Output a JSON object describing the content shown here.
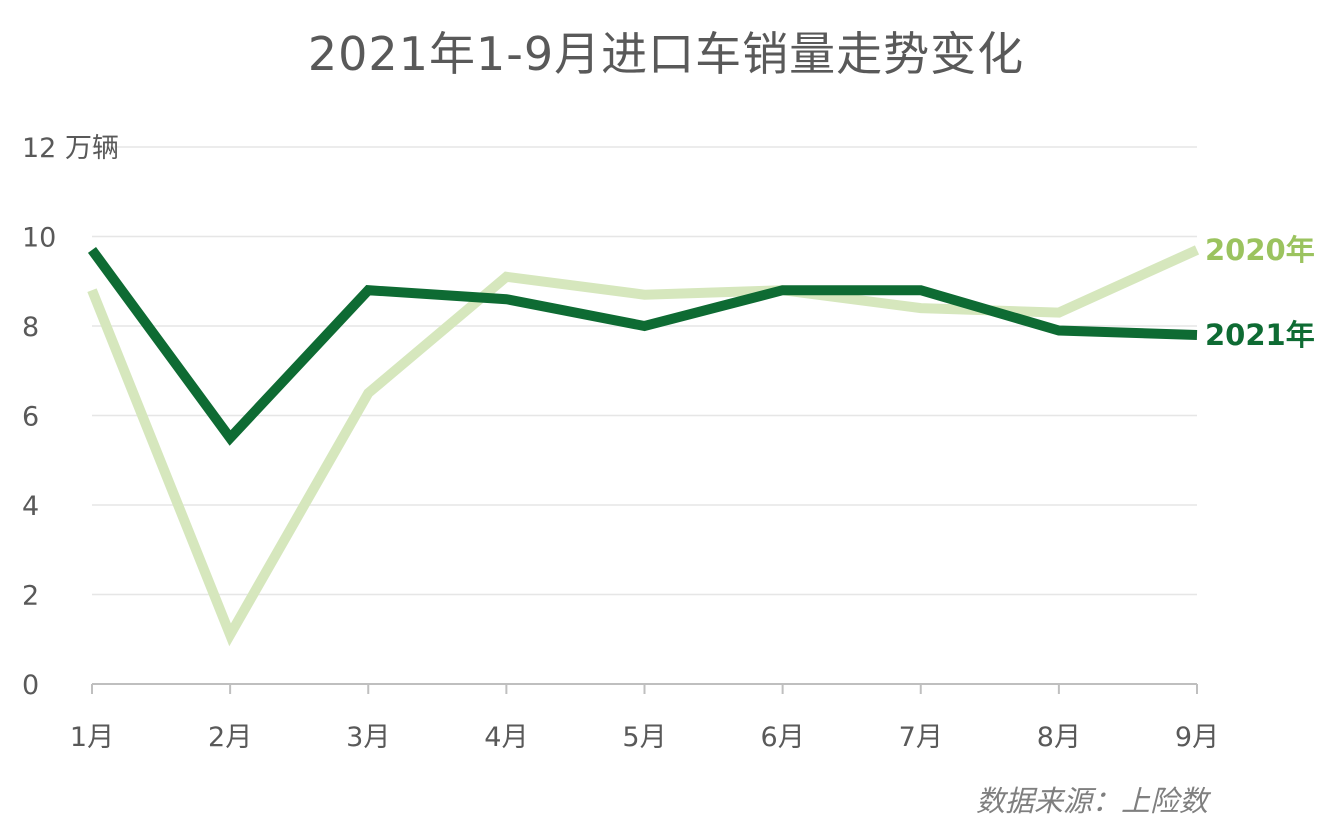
{
  "title": "2021年1-9月进口车销量走势变化",
  "source": "数据来源：上险数",
  "chart_data": {
    "type": "line",
    "title": "2021年1-9月进口车销量走势变化",
    "ylabel": "12 万辆",
    "ylim": [
      0,
      12
    ],
    "yticks": [
      0,
      2,
      4,
      6,
      8,
      10,
      12
    ],
    "ytick_labels": [
      "0",
      "2",
      "4",
      "6",
      "8",
      "10",
      "12 万辆"
    ],
    "categories": [
      "1月",
      "2月",
      "3月",
      "4月",
      "5月",
      "6月",
      "7月",
      "8月",
      "9月"
    ],
    "grid": true,
    "legend": "end-of-line labels",
    "series": [
      {
        "name": "2020年",
        "values": [
          8.8,
          1.1,
          6.5,
          9.1,
          8.7,
          8.8,
          8.4,
          8.3,
          9.7
        ],
        "color": "#d6e7bd"
      },
      {
        "name": "2021年",
        "values": [
          9.7,
          5.5,
          8.8,
          8.6,
          8.0,
          8.8,
          8.8,
          7.9,
          7.8
        ],
        "color": "#0e6b33"
      }
    ],
    "label_colors": {
      "2020年": "#9bc35f",
      "2021年": "#0e6b33"
    },
    "axis_color": "#bfbfbf",
    "grid_color": "#e6e6e6"
  }
}
